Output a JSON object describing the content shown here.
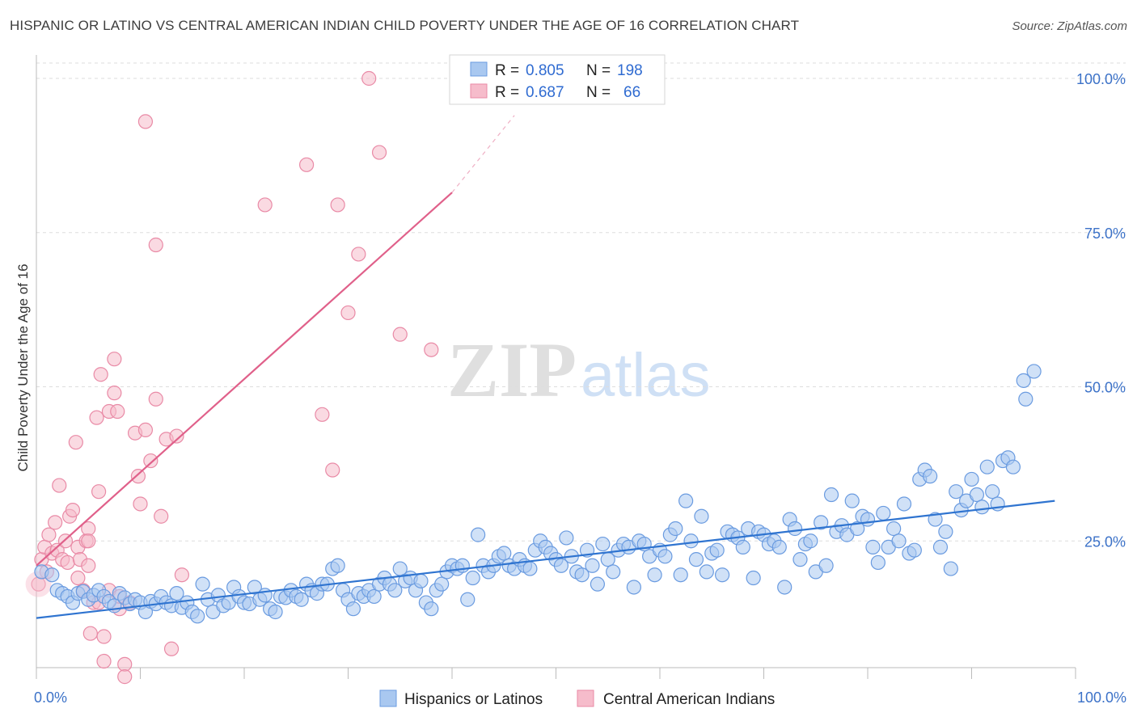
{
  "title": "HISPANIC OR LATINO VS CENTRAL AMERICAN INDIAN CHILD POVERTY UNDER THE AGE OF 16 CORRELATION CHART",
  "source": "Source: ZipAtlas.com",
  "watermark": {
    "zip": "ZIP",
    "atlas": "atlas"
  },
  "colors": {
    "blue_fill": "#a9c8f0",
    "blue_stroke": "#6a9be0",
    "blue_line": "#2f74d0",
    "pink_fill": "#f6bccb",
    "pink_stroke": "#e98aa6",
    "pink_line": "#e0608a",
    "tick_text": "#3c72c8",
    "grid": "#dddddd"
  },
  "legend_top": {
    "rows": [
      {
        "r_label": "R =",
        "r_value": "0.805",
        "n_label": "N =",
        "n_value": "198",
        "series": "blue"
      },
      {
        "r_label": "R =",
        "r_value": "0.687",
        "n_label": "N =",
        "n_value": "66",
        "series": "pink"
      }
    ]
  },
  "legend_bottom": [
    {
      "label": "Hispanics or Latinos",
      "series": "blue"
    },
    {
      "label": "Central American Indians",
      "series": "pink"
    }
  ],
  "chart_data": {
    "type": "scatter",
    "title": "HISPANIC OR LATINO VS CENTRAL AMERICAN INDIAN CHILD POVERTY UNDER THE AGE OF 16 CORRELATION CHART",
    "xlabel": "",
    "ylabel": "Child Poverty Under the Age of 16",
    "xlim": [
      0,
      100
    ],
    "ylim": [
      0,
      100
    ],
    "x_tick_labels": [
      {
        "value": 0,
        "label": "0.0%"
      },
      {
        "value": 100,
        "label": "100.0%"
      }
    ],
    "y_tick_labels": [
      {
        "value": 25,
        "label": "25.0%"
      },
      {
        "value": 50,
        "label": "50.0%"
      },
      {
        "value": 75,
        "label": "75.0%"
      },
      {
        "value": 100,
        "label": "100.0%"
      }
    ],
    "grid": "horizontal dashed",
    "legend_position": "top-center",
    "series": [
      {
        "name": "Hispanics or Latinos",
        "color": "blue",
        "r": 0.805,
        "n": 198,
        "trend": {
          "x0": 0,
          "y0": 12.5,
          "x1": 98,
          "y1": 31.5
        },
        "points": [
          [
            0.5,
            20
          ],
          [
            1.5,
            19.5
          ],
          [
            2,
            17
          ],
          [
            2.5,
            16.5
          ],
          [
            3,
            16
          ],
          [
            3.5,
            15
          ],
          [
            4,
            16.5
          ],
          [
            4.5,
            16.8
          ],
          [
            5,
            15.5
          ],
          [
            5.5,
            16.2
          ],
          [
            6,
            17
          ],
          [
            6.5,
            16
          ],
          [
            7,
            15.2
          ],
          [
            7.5,
            14.5
          ],
          [
            8,
            16.5
          ],
          [
            8.5,
            15.8
          ],
          [
            9,
            14.8
          ],
          [
            9.5,
            15.5
          ],
          [
            10,
            15
          ],
          [
            10.5,
            13.5
          ],
          [
            11,
            15.2
          ],
          [
            11.5,
            14.8
          ],
          [
            12,
            16
          ],
          [
            12.5,
            15
          ],
          [
            13,
            14.5
          ],
          [
            13.5,
            16.5
          ],
          [
            14,
            14.2
          ],
          [
            14.5,
            15
          ],
          [
            15,
            13.5
          ],
          [
            15.5,
            12.8
          ],
          [
            16,
            18
          ],
          [
            16.5,
            15.5
          ],
          [
            17,
            13.5
          ],
          [
            17.5,
            16.2
          ],
          [
            18,
            14.5
          ],
          [
            18.5,
            15
          ],
          [
            19,
            17.5
          ],
          [
            19.5,
            16
          ],
          [
            20,
            15
          ],
          [
            20.5,
            14.8
          ],
          [
            21,
            17.5
          ],
          [
            21.5,
            15.5
          ],
          [
            22,
            16.2
          ],
          [
            22.5,
            14
          ],
          [
            23,
            13.5
          ],
          [
            23.5,
            16
          ],
          [
            24,
            15.8
          ],
          [
            24.5,
            17
          ],
          [
            25,
            16
          ],
          [
            25.5,
            15.5
          ],
          [
            26,
            18
          ],
          [
            26.5,
            17
          ],
          [
            27,
            16.5
          ],
          [
            27.5,
            18
          ],
          [
            28,
            18
          ],
          [
            28.5,
            20.5
          ],
          [
            29,
            21
          ],
          [
            29.5,
            17
          ],
          [
            30,
            15.5
          ],
          [
            30.5,
            14
          ],
          [
            31,
            16.5
          ],
          [
            31.5,
            16
          ],
          [
            32,
            17
          ],
          [
            32.5,
            16
          ],
          [
            33,
            18
          ],
          [
            33.5,
            19
          ],
          [
            34,
            18
          ],
          [
            34.5,
            17
          ],
          [
            35,
            20.5
          ],
          [
            35.5,
            18.5
          ],
          [
            36,
            19
          ],
          [
            36.5,
            17
          ],
          [
            37,
            18.5
          ],
          [
            37.5,
            15
          ],
          [
            38,
            14
          ],
          [
            38.5,
            17
          ],
          [
            39,
            18
          ],
          [
            39.5,
            20
          ],
          [
            40,
            21
          ],
          [
            40.5,
            20.5
          ],
          [
            41,
            21
          ],
          [
            41.5,
            15.5
          ],
          [
            42,
            19
          ],
          [
            42.5,
            26
          ],
          [
            43,
            21
          ],
          [
            43.5,
            20
          ],
          [
            44,
            21
          ],
          [
            44.5,
            22.5
          ],
          [
            45,
            23
          ],
          [
            45.5,
            21
          ],
          [
            46,
            20.5
          ],
          [
            46.5,
            22
          ],
          [
            47,
            21
          ],
          [
            47.5,
            20.5
          ],
          [
            48,
            23.5
          ],
          [
            48.5,
            25
          ],
          [
            49,
            24
          ],
          [
            49.5,
            23
          ],
          [
            50,
            22
          ],
          [
            50.5,
            21
          ],
          [
            51,
            25.5
          ],
          [
            51.5,
            22.5
          ],
          [
            52,
            20
          ],
          [
            52.5,
            19.5
          ],
          [
            53,
            23.5
          ],
          [
            53.5,
            21
          ],
          [
            54,
            18
          ],
          [
            54.5,
            24.5
          ],
          [
            55,
            22
          ],
          [
            55.5,
            20
          ],
          [
            56,
            23.5
          ],
          [
            56.5,
            24.5
          ],
          [
            57,
            24
          ],
          [
            57.5,
            17.5
          ],
          [
            58,
            25
          ],
          [
            58.5,
            24.5
          ],
          [
            59,
            22.5
          ],
          [
            59.5,
            19.5
          ],
          [
            60,
            23.5
          ],
          [
            60.5,
            22.5
          ],
          [
            61,
            26
          ],
          [
            61.5,
            27
          ],
          [
            62,
            19.5
          ],
          [
            62.5,
            31.5
          ],
          [
            63,
            25
          ],
          [
            63.5,
            22
          ],
          [
            64,
            29
          ],
          [
            64.5,
            20
          ],
          [
            65,
            23
          ],
          [
            65.5,
            23.5
          ],
          [
            66,
            19.5
          ],
          [
            66.5,
            26.5
          ],
          [
            67,
            26
          ],
          [
            67.5,
            25.5
          ],
          [
            68,
            24
          ],
          [
            68.5,
            27
          ],
          [
            69,
            19
          ],
          [
            69.5,
            26.5
          ],
          [
            70,
            26
          ],
          [
            70.5,
            24.5
          ],
          [
            71,
            25
          ],
          [
            71.5,
            24
          ],
          [
            72,
            17.5
          ],
          [
            72.5,
            28.5
          ],
          [
            73,
            27
          ],
          [
            73.5,
            22
          ],
          [
            74,
            24.5
          ],
          [
            74.5,
            25
          ],
          [
            75,
            20
          ],
          [
            75.5,
            28
          ],
          [
            76,
            21
          ],
          [
            76.5,
            32.5
          ],
          [
            77,
            26.5
          ],
          [
            77.5,
            27.5
          ],
          [
            78,
            26
          ],
          [
            78.5,
            31.5
          ],
          [
            79,
            27
          ],
          [
            79.5,
            29
          ],
          [
            80,
            28.5
          ],
          [
            80.5,
            24
          ],
          [
            81,
            21.5
          ],
          [
            81.5,
            29.5
          ],
          [
            82,
            24
          ],
          [
            82.5,
            27
          ],
          [
            83,
            25
          ],
          [
            83.5,
            31
          ],
          [
            84,
            23
          ],
          [
            84.5,
            23.5
          ],
          [
            85,
            35
          ],
          [
            85.5,
            36.5
          ],
          [
            86,
            35.5
          ],
          [
            86.5,
            28.5
          ],
          [
            87,
            24
          ],
          [
            87.5,
            26.5
          ],
          [
            88,
            20.5
          ],
          [
            88.5,
            33
          ],
          [
            89,
            30
          ],
          [
            89.5,
            31.5
          ],
          [
            90,
            35
          ],
          [
            90.5,
            32.5
          ],
          [
            91,
            30.5
          ],
          [
            91.5,
            37
          ],
          [
            92,
            33
          ],
          [
            92.5,
            31
          ],
          [
            93,
            38
          ],
          [
            93.5,
            38.5
          ],
          [
            94,
            37
          ],
          [
            95,
            51
          ],
          [
            95.2,
            48
          ],
          [
            96,
            52.5
          ]
        ]
      },
      {
        "name": "Central American Indians",
        "color": "pink",
        "r": 0.687,
        "n": 66,
        "trend": {
          "x0": 0,
          "y0": 21,
          "x1": 40,
          "y1": 81.5
        },
        "trend_dashed_to": {
          "x": 46,
          "y": 94
        },
        "points": [
          [
            0.2,
            18
          ],
          [
            0.5,
            22
          ],
          [
            0.8,
            24
          ],
          [
            1,
            20
          ],
          [
            1.2,
            26
          ],
          [
            1.5,
            23
          ],
          [
            1.8,
            28
          ],
          [
            2,
            23.5
          ],
          [
            2.2,
            34
          ],
          [
            2.5,
            22
          ],
          [
            2.8,
            25
          ],
          [
            3,
            21.5
          ],
          [
            3.2,
            29
          ],
          [
            3.5,
            30
          ],
          [
            3.8,
            41
          ],
          [
            4,
            19
          ],
          [
            4,
            24
          ],
          [
            4.2,
            22
          ],
          [
            4.5,
            17
          ],
          [
            4.8,
            25
          ],
          [
            5,
            27
          ],
          [
            5,
            25
          ],
          [
            5,
            21
          ],
          [
            5.2,
            10
          ],
          [
            5.5,
            15
          ],
          [
            5.8,
            45
          ],
          [
            6,
            33
          ],
          [
            6,
            15
          ],
          [
            6.2,
            52
          ],
          [
            6.5,
            5.5
          ],
          [
            6.5,
            9.5
          ],
          [
            7,
            17
          ],
          [
            7,
            46
          ],
          [
            7.5,
            54.5
          ],
          [
            7.5,
            49
          ],
          [
            7.8,
            46
          ],
          [
            8,
            14
          ],
          [
            8,
            16
          ],
          [
            8.5,
            5
          ],
          [
            8.5,
            3
          ],
          [
            9,
            15
          ],
          [
            9.5,
            42.5
          ],
          [
            9.8,
            35.5
          ],
          [
            10,
            31
          ],
          [
            10.5,
            43
          ],
          [
            10.5,
            93
          ],
          [
            11,
            38
          ],
          [
            11.5,
            73
          ],
          [
            11.5,
            48
          ],
          [
            12,
            29
          ],
          [
            12.5,
            41.5
          ],
          [
            13,
            7.5
          ],
          [
            13.5,
            42
          ],
          [
            14,
            19.5
          ],
          [
            22,
            79.5
          ],
          [
            26,
            86
          ],
          [
            27.5,
            45.5
          ],
          [
            28.5,
            36.5
          ],
          [
            29,
            79.5
          ],
          [
            30,
            62
          ],
          [
            31,
            71.5
          ],
          [
            32,
            100
          ],
          [
            33,
            88
          ],
          [
            35,
            58.5
          ],
          [
            38,
            56
          ]
        ]
      }
    ]
  }
}
